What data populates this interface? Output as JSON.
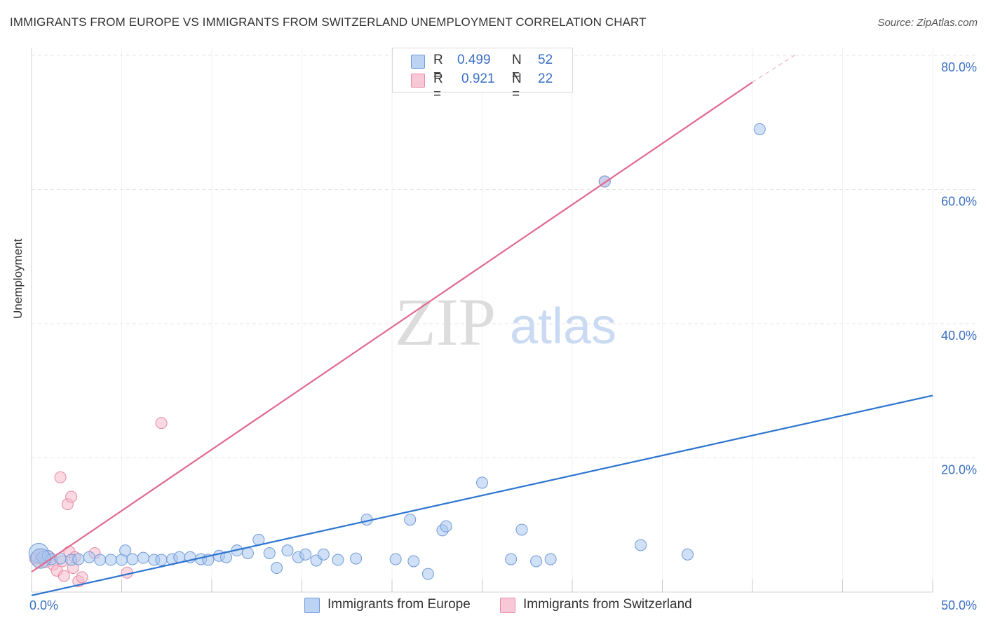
{
  "title": "IMMIGRANTS FROM EUROPE VS IMMIGRANTS FROM SWITZERLAND UNEMPLOYMENT CORRELATION CHART",
  "source": "Source: ZipAtlas.com",
  "watermark": {
    "zip": "ZIP",
    "atlas": "atlas"
  },
  "colors": {
    "europe_fill": "#a9c6ef",
    "europe_stroke": "#6f9ad8",
    "europe_line": "#2d74d1",
    "swiss_fill": "#f6b9cb",
    "swiss_stroke": "#e58aa6",
    "swiss_line": "#e0698f",
    "tick_label": "#3a6fc4",
    "grid": "#e5e5e5"
  },
  "legend": {
    "europe": {
      "r_label": "R =",
      "r_value": "0.499",
      "n_label": "N =",
      "n_value": "52"
    },
    "swiss": {
      "r_label": "R =",
      "r_value": "0.921",
      "n_label": "N =",
      "n_value": "22"
    }
  },
  "bottom_legend": {
    "europe": "Immigrants from Europe",
    "swiss": "Immigrants from Switzerland"
  },
  "chart_data": {
    "type": "scatter",
    "title": "IMMIGRANTS FROM EUROPE VS IMMIGRANTS FROM SWITZERLAND UNEMPLOYMENT CORRELATION CHART",
    "xlabel": "",
    "ylabel": "Unemployment",
    "xlim": [
      0,
      50
    ],
    "ylim": [
      0,
      80
    ],
    "x_tick_labels": [
      {
        "value": 0,
        "label": "0.0%"
      },
      {
        "value": 50,
        "label": "50.0%"
      }
    ],
    "y_tick_labels": [
      {
        "value": 20,
        "label": "20.0%"
      },
      {
        "value": 40,
        "label": "40.0%"
      },
      {
        "value": 60,
        "label": "60.0%"
      },
      {
        "value": 80,
        "label": "80.0%"
      }
    ],
    "grid": true,
    "legend_position": "top-center",
    "series": [
      {
        "name": "Immigrants from Europe",
        "points": [
          [
            0.4,
            5.8
          ],
          [
            0.6,
            5.2
          ],
          [
            0.9,
            5.4
          ],
          [
            1.1,
            4.9
          ],
          [
            1.6,
            5.0
          ],
          [
            2.2,
            4.8
          ],
          [
            3.2,
            5.2
          ],
          [
            3.8,
            4.8
          ],
          [
            4.4,
            4.8
          ],
          [
            5.0,
            4.8
          ],
          [
            5.2,
            6.2
          ],
          [
            5.6,
            4.9
          ],
          [
            6.2,
            5.1
          ],
          [
            6.8,
            4.8
          ],
          [
            7.2,
            4.8
          ],
          [
            7.8,
            4.9
          ],
          [
            8.2,
            5.2
          ],
          [
            8.8,
            5.2
          ],
          [
            9.4,
            4.9
          ],
          [
            9.8,
            4.8
          ],
          [
            10.4,
            5.4
          ],
          [
            10.8,
            5.2
          ],
          [
            11.4,
            6.2
          ],
          [
            12.0,
            5.8
          ],
          [
            12.6,
            7.8
          ],
          [
            13.2,
            5.8
          ],
          [
            13.6,
            3.6
          ],
          [
            14.2,
            6.2
          ],
          [
            14.8,
            5.2
          ],
          [
            15.2,
            5.6
          ],
          [
            15.8,
            4.7
          ],
          [
            16.2,
            5.6
          ],
          [
            17.0,
            4.8
          ],
          [
            18.0,
            5.0
          ],
          [
            18.6,
            10.8
          ],
          [
            20.2,
            4.9
          ],
          [
            21.0,
            10.8
          ],
          [
            21.2,
            4.6
          ],
          [
            22.0,
            2.7
          ],
          [
            22.8,
            9.2
          ],
          [
            23.0,
            9.8
          ],
          [
            25.0,
            16.3
          ],
          [
            26.6,
            4.9
          ],
          [
            27.2,
            9.3
          ],
          [
            28.0,
            4.6
          ],
          [
            28.8,
            4.9
          ],
          [
            31.8,
            61.2
          ],
          [
            33.8,
            7.0
          ],
          [
            36.4,
            5.6
          ],
          [
            40.4,
            69.0
          ],
          [
            0.5,
            5.0
          ],
          [
            2.6,
            4.9
          ]
        ],
        "trend": {
          "x0": 0,
          "y0": -0.5,
          "x1": 50,
          "y1": 29.3
        }
      },
      {
        "name": "Immigrants from Switzerland",
        "points": [
          [
            0.2,
            5.0
          ],
          [
            0.4,
            4.4
          ],
          [
            0.5,
            5.5
          ],
          [
            0.6,
            4.9
          ],
          [
            0.8,
            4.5
          ],
          [
            1.0,
            5.2
          ],
          [
            1.2,
            4.1
          ],
          [
            1.4,
            3.2
          ],
          [
            1.6,
            17.1
          ],
          [
            1.7,
            4.6
          ],
          [
            1.8,
            2.4
          ],
          [
            2.0,
            13.1
          ],
          [
            2.1,
            6.0
          ],
          [
            2.2,
            14.2
          ],
          [
            2.3,
            3.6
          ],
          [
            2.4,
            5.2
          ],
          [
            2.6,
            1.6
          ],
          [
            2.8,
            2.2
          ],
          [
            3.5,
            5.8
          ],
          [
            5.3,
            2.9
          ],
          [
            7.2,
            25.2
          ],
          [
            31.8,
            61.2
          ]
        ],
        "trend": {
          "x0": 0,
          "y0": 3.0,
          "x1": 40.0,
          "y1": 76.0
        },
        "trend_dashed_extension": {
          "x0": 40.0,
          "y0": 76.0,
          "x1": 42.5,
          "y1": 80.3
        }
      }
    ]
  }
}
